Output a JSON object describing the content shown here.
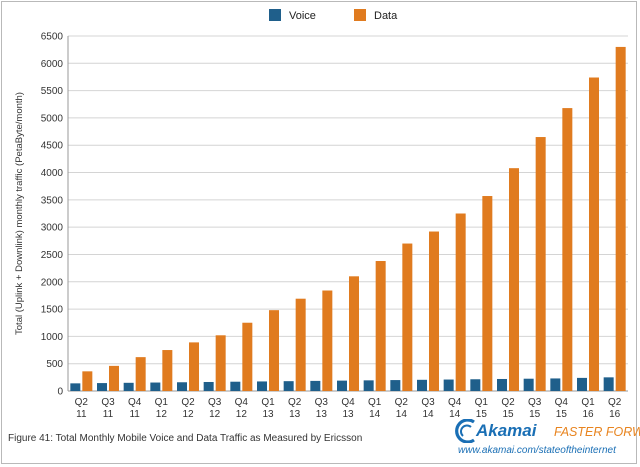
{
  "chart_data": {
    "type": "bar",
    "title": "",
    "ylabel": "Total (Uplink + Downlink) monthly traffic (PetaByte/month)",
    "xlabel": "",
    "ylim": [
      0,
      6500
    ],
    "yticks": [
      0,
      500,
      1000,
      1500,
      2000,
      2500,
      3000,
      3500,
      4000,
      4500,
      5000,
      5500,
      6000,
      6500
    ],
    "grid": true,
    "legend_position": "top-center",
    "categories": [
      [
        "Q2",
        "11"
      ],
      [
        "Q3",
        "11"
      ],
      [
        "Q4",
        "11"
      ],
      [
        "Q1",
        "12"
      ],
      [
        "Q2",
        "12"
      ],
      [
        "Q3",
        "12"
      ],
      [
        "Q4",
        "12"
      ],
      [
        "Q1",
        "13"
      ],
      [
        "Q2",
        "13"
      ],
      [
        "Q3",
        "13"
      ],
      [
        "Q4",
        "13"
      ],
      [
        "Q1",
        "14"
      ],
      [
        "Q2",
        "14"
      ],
      [
        "Q3",
        "14"
      ],
      [
        "Q4",
        "14"
      ],
      [
        "Q1",
        "15"
      ],
      [
        "Q2",
        "15"
      ],
      [
        "Q3",
        "15"
      ],
      [
        "Q4",
        "15"
      ],
      [
        "Q1",
        "16"
      ],
      [
        "Q2",
        "16"
      ]
    ],
    "series": [
      {
        "name": "Voice",
        "color": "#1f5f8b",
        "values": [
          140,
          145,
          150,
          155,
          160,
          165,
          170,
          175,
          180,
          185,
          190,
          195,
          200,
          205,
          210,
          215,
          220,
          225,
          230,
          240,
          250
        ]
      },
      {
        "name": "Data",
        "color": "#e07b1f",
        "values": [
          360,
          460,
          620,
          750,
          890,
          1020,
          1250,
          1480,
          1690,
          1840,
          2100,
          2380,
          2700,
          2920,
          3250,
          3570,
          4080,
          4650,
          5180,
          5740,
          6300
        ]
      }
    ]
  },
  "caption": "Figure 41: Total Monthly Mobile Voice and Data Traffic as Measured by Ericsson",
  "brand": {
    "name": "Akamai",
    "tagline": "FASTER FORWARD",
    "url": "www.akamai.com/stateoftheinternet"
  }
}
